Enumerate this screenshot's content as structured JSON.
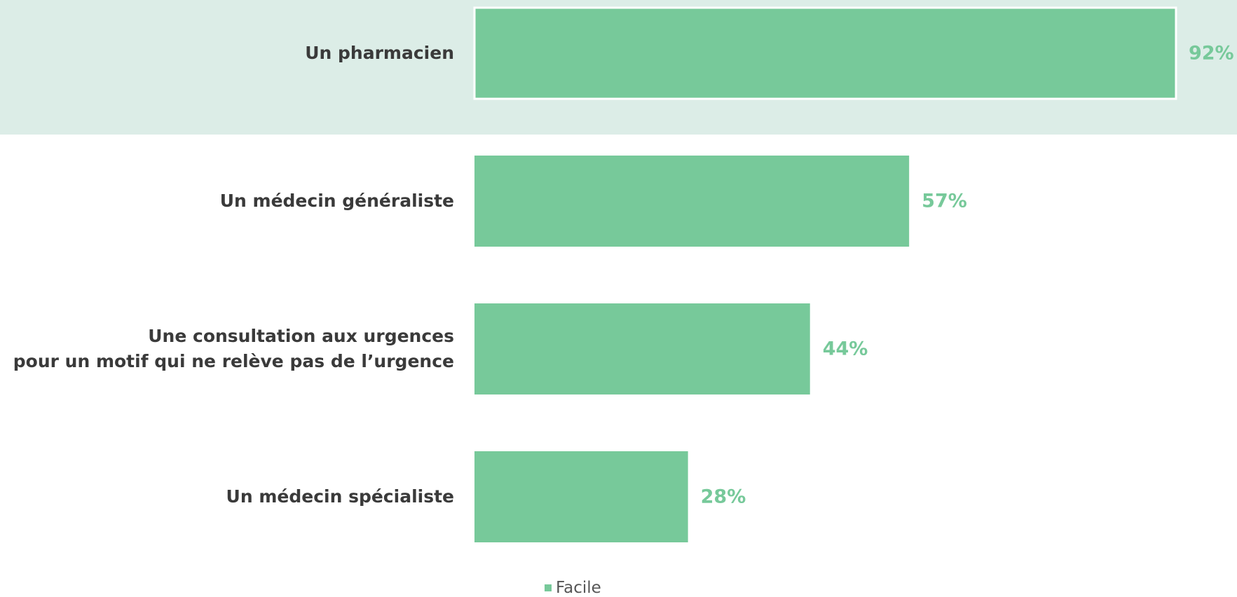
{
  "chart_data": {
    "type": "bar",
    "orientation": "horizontal",
    "categories": [
      "Un pharmacien",
      "Un médecin généraliste",
      "Une consultation aux urgences\npour un motif qui ne relève pas de l’urgence",
      "Un médecin spécialiste"
    ],
    "series": [
      {
        "name": "Facile",
        "color": "#77c99a",
        "values": [
          92,
          57,
          44,
          28
        ],
        "value_labels": [
          "92%",
          "57%",
          "44%",
          "28%"
        ]
      }
    ],
    "xlim": [
      0,
      100
    ]
  }
}
